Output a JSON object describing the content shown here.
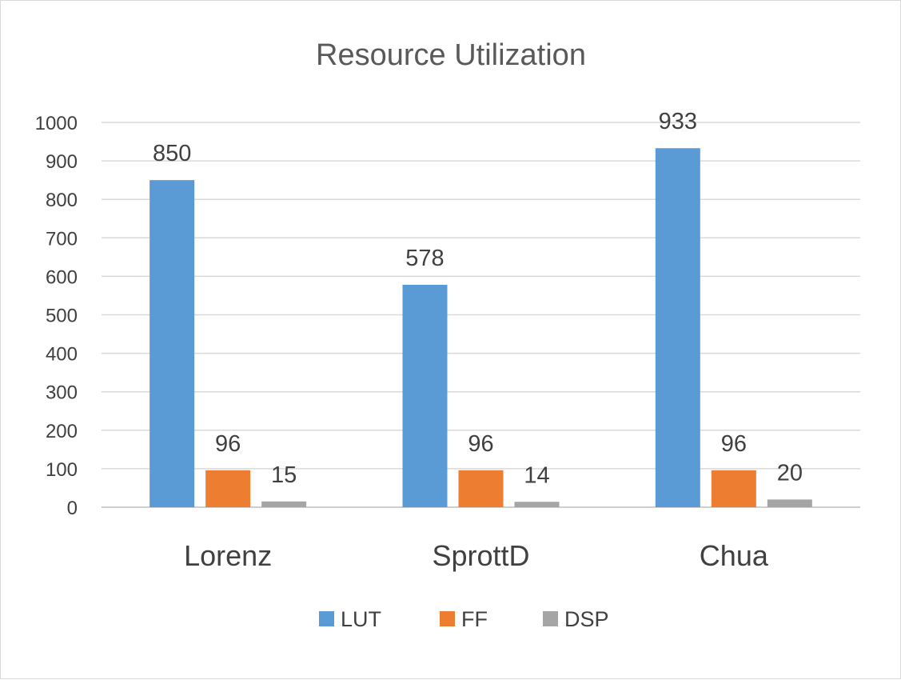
{
  "chart_data": {
    "type": "bar",
    "title": "Resource Utilization",
    "categories": [
      "Lorenz",
      "SprottD",
      "Chua"
    ],
    "series": [
      {
        "name": "LUT",
        "color": "#5b9bd5",
        "values": [
          850,
          578,
          933
        ]
      },
      {
        "name": "FF",
        "color": "#ed7d31",
        "values": [
          96,
          96,
          96
        ]
      },
      {
        "name": "DSP",
        "color": "#a5a5a5",
        "values": [
          15,
          14,
          20
        ]
      }
    ],
    "ylim": [
      0,
      1000
    ],
    "yticks": [
      "0",
      "100",
      "200",
      "300",
      "400",
      "500",
      "600",
      "700",
      "800",
      "900",
      "1000"
    ],
    "grid": true,
    "legend": "bottom",
    "data_labels": true
  }
}
